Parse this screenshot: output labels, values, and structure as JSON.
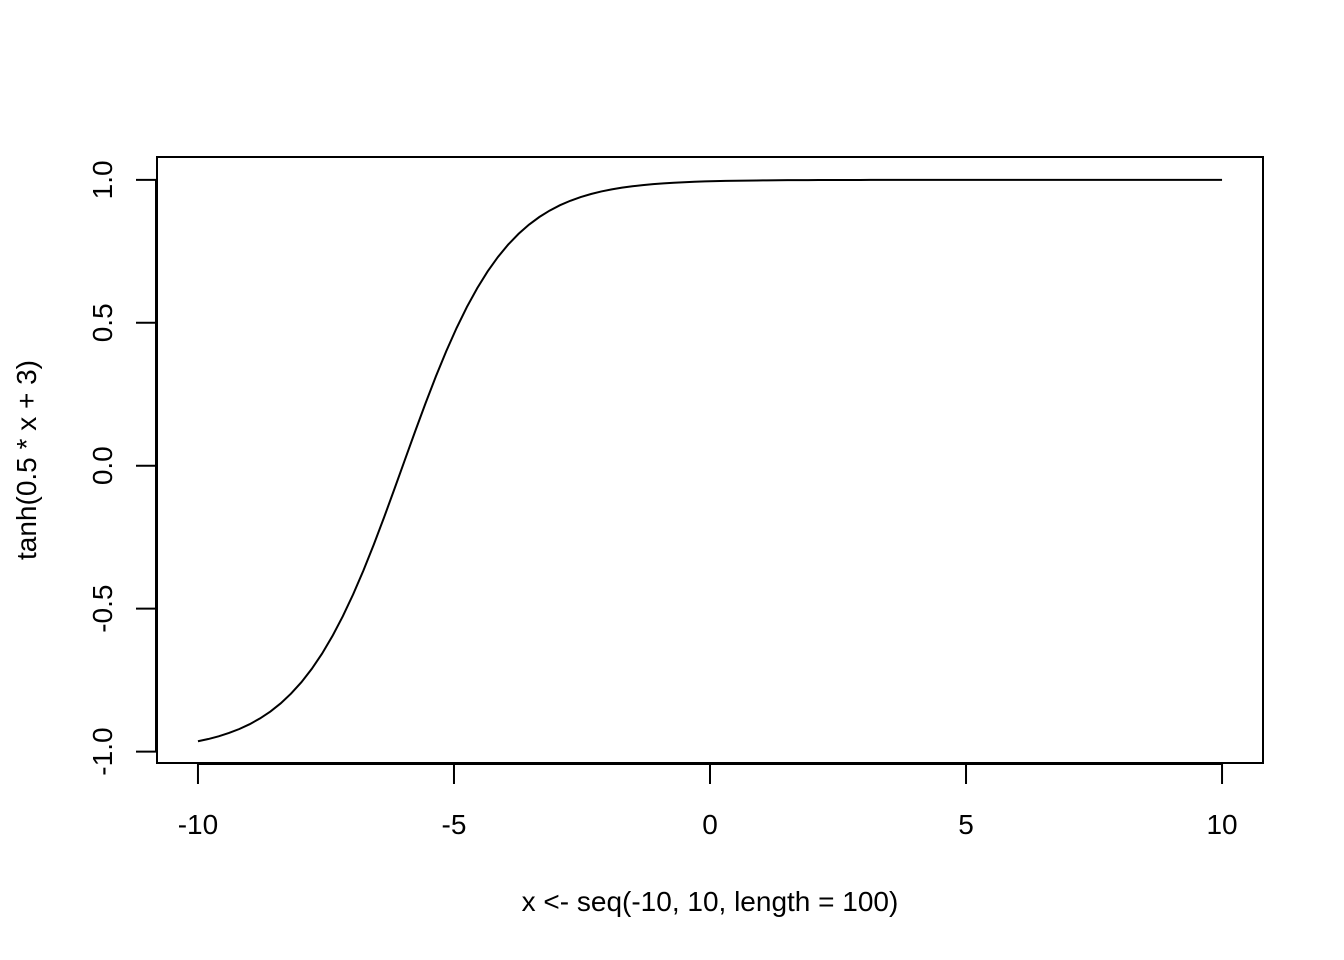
{
  "chart_data": {
    "type": "line",
    "title": "",
    "xlabel": "x <- seq(-10, 10, length = 100)",
    "ylabel": "tanh(0.5 * x + 3)",
    "xlim": [
      -10.8,
      10.8
    ],
    "ylim": [
      -1.04,
      1.08
    ],
    "xticks": [
      -10,
      -5,
      0,
      5,
      10
    ],
    "xtick_labels": [
      "-10",
      "-5",
      "0",
      "5",
      "10"
    ],
    "yticks": [
      -1.0,
      -0.5,
      0.0,
      0.5,
      1.0
    ],
    "ytick_labels": [
      "-1.0",
      "-0.5",
      "0.0",
      "0.5",
      "1.0"
    ],
    "grid": false,
    "legend": "none",
    "line_color": "#000000",
    "series": [
      {
        "function": "tanh(0.5 * x + 3)",
        "x_range": [
          -10,
          10
        ],
        "num_points": 100
      }
    ]
  }
}
